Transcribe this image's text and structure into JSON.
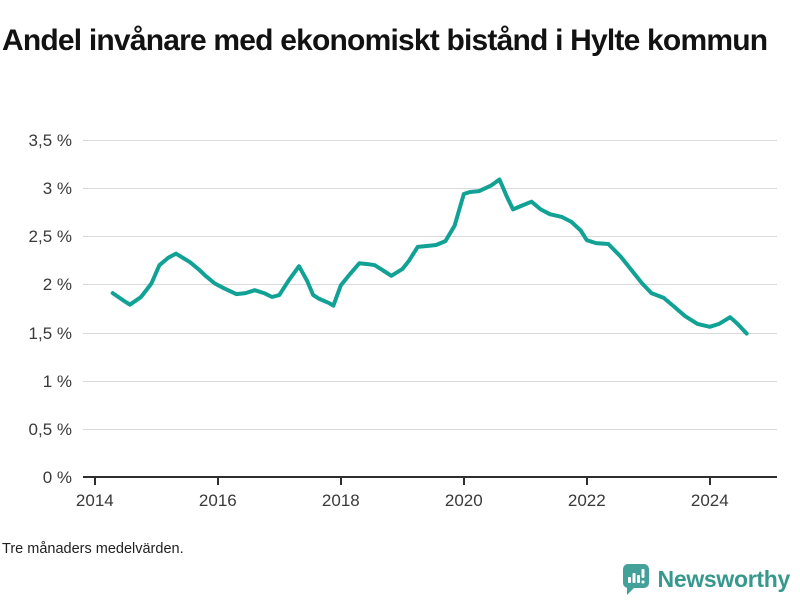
{
  "title": "Andel invånare med ekonomiskt bistånd i Hylte kommun",
  "footnote": "Tre månaders medelvärden.",
  "brand": {
    "name": "Newsworthy",
    "text_color": "#37998d",
    "icon_color": "#44a199"
  },
  "colors": {
    "line": "#12a195",
    "grid": "#d9d9d9",
    "axis": "#2e2e2e",
    "labels": "#3a3a3a",
    "title": "#121212"
  },
  "chart_data": {
    "type": "line",
    "title": "Andel invånare med ekonomiskt bistånd i Hylte kommun",
    "subtitle": "",
    "xlabel": "",
    "ylabel": "",
    "unit": "%",
    "grid": "horizontal",
    "legend": "none",
    "xlim": [
      2013.84,
      2025.06
    ],
    "ylim": [
      0,
      3.5
    ],
    "yticks": [
      0,
      0.5,
      1,
      1.5,
      2,
      2.5,
      3,
      3.5
    ],
    "ytick_labels": [
      "0 %",
      "0,5 %",
      "1 %",
      "1,5 %",
      "2 %",
      "2,5 %",
      "3 %",
      "3,5 %"
    ],
    "xticks": [
      2014,
      2016,
      2018,
      2020,
      2022,
      2024
    ],
    "xtick_labels": [
      "2014",
      "2016",
      "2018",
      "2020",
      "2022",
      "2024"
    ],
    "x": [
      2014.29,
      2014.45,
      2014.57,
      2014.75,
      2014.92,
      2015.05,
      2015.2,
      2015.32,
      2015.45,
      2015.55,
      2015.7,
      2015.8,
      2015.95,
      2016.1,
      2016.3,
      2016.45,
      2016.6,
      2016.75,
      2016.88,
      2017.0,
      2017.15,
      2017.32,
      2017.45,
      2017.55,
      2017.65,
      2017.8,
      2017.88,
      2018.0,
      2018.15,
      2018.3,
      2018.45,
      2018.55,
      2018.7,
      2018.82,
      2019.0,
      2019.1,
      2019.25,
      2019.4,
      2019.55,
      2019.7,
      2019.85,
      2020.0,
      2020.1,
      2020.25,
      2020.45,
      2020.58,
      2020.7,
      2020.8,
      2020.95,
      2021.1,
      2021.25,
      2021.4,
      2021.6,
      2021.75,
      2021.9,
      2022.0,
      2022.15,
      2022.35,
      2022.55,
      2022.7,
      2022.9,
      2023.05,
      2023.25,
      2023.4,
      2023.6,
      2023.8,
      2024.0,
      2024.15,
      2024.33,
      2024.45,
      2024.6
    ],
    "values": [
      1.92,
      1.85,
      1.8,
      1.88,
      2.02,
      2.21,
      2.29,
      2.33,
      2.28,
      2.24,
      2.16,
      2.1,
      2.02,
      1.97,
      1.91,
      1.92,
      1.95,
      1.92,
      1.88,
      1.9,
      2.05,
      2.2,
      2.05,
      1.9,
      1.86,
      1.82,
      1.79,
      2.0,
      2.12,
      2.23,
      2.22,
      2.21,
      2.15,
      2.1,
      2.17,
      2.25,
      2.4,
      2.41,
      2.42,
      2.46,
      2.62,
      2.95,
      2.97,
      2.98,
      3.04,
      3.1,
      2.92,
      2.79,
      2.83,
      2.87,
      2.79,
      2.74,
      2.71,
      2.66,
      2.57,
      2.47,
      2.44,
      2.43,
      2.3,
      2.18,
      2.02,
      1.92,
      1.87,
      1.79,
      1.68,
      1.6,
      1.57,
      1.6,
      1.67,
      1.6,
      1.5
    ]
  }
}
